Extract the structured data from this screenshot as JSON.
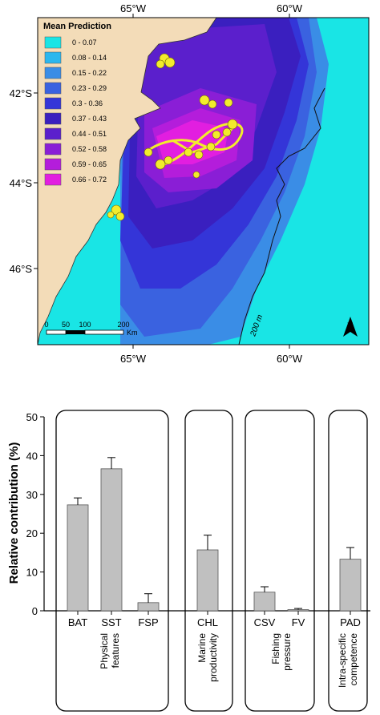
{
  "map": {
    "legend_title": "Mean Prediction",
    "legend": [
      {
        "label": "0 - 0.07",
        "color": "#19e5e5"
      },
      {
        "label": "0.08 - 0.14",
        "color": "#2bb7ee"
      },
      {
        "label": "0.15 - 0.22",
        "color": "#3a8de6"
      },
      {
        "label": "0.23 - 0.29",
        "color": "#3a62e0"
      },
      {
        "label": "0.3 - 0.36",
        "color": "#3435d8"
      },
      {
        "label": "0.37 - 0.43",
        "color": "#3a1fbf"
      },
      {
        "label": "0.44 - 0.51",
        "color": "#5b1fcc"
      },
      {
        "label": "0.52 - 0.58",
        "color": "#8a1ed6"
      },
      {
        "label": "0.59 - 0.65",
        "color": "#b41ddb"
      },
      {
        "label": "0.66 - 0.72",
        "color": "#e21ee0"
      }
    ],
    "top_ticks": [
      "65°W",
      "60°W"
    ],
    "bottom_ticks": [
      "65°W",
      "60°W"
    ],
    "left_ticks": [
      "42°S",
      "44°S",
      "46°S"
    ],
    "scale_ticks": [
      "0",
      "50",
      "100",
      "200"
    ],
    "scale_unit": "Km",
    "north_label": "N",
    "isobath_label": "200 m",
    "land_color": "#f3dcb8",
    "track_color": "#f2ec2c"
  },
  "chart_data": {
    "type": "bar",
    "categories": [
      "BAT",
      "SST",
      "FSP",
      "CHL",
      "CSV",
      "FV",
      "PAD"
    ],
    "values": [
      27.3,
      36.6,
      2.1,
      15.7,
      4.8,
      0.3,
      13.3
    ],
    "errors": [
      1.8,
      2.9,
      2.3,
      3.8,
      1.4,
      0.3,
      3.0
    ],
    "groups": [
      {
        "label": "Physical features",
        "categories": [
          "BAT",
          "SST",
          "FSP"
        ]
      },
      {
        "label": "Marine productivity",
        "categories": [
          "CHL"
        ]
      },
      {
        "label": "Fishing pressure",
        "categories": [
          "CSV",
          "FV"
        ]
      },
      {
        "label": "Intra-specific competence",
        "categories": [
          "PAD"
        ]
      }
    ],
    "ylabel": "Relative contribution (%)",
    "ylim": [
      0,
      50
    ],
    "yticks": [
      "0",
      "10",
      "20",
      "30",
      "40",
      "50"
    ],
    "bar_color": "#c0c0c0"
  }
}
